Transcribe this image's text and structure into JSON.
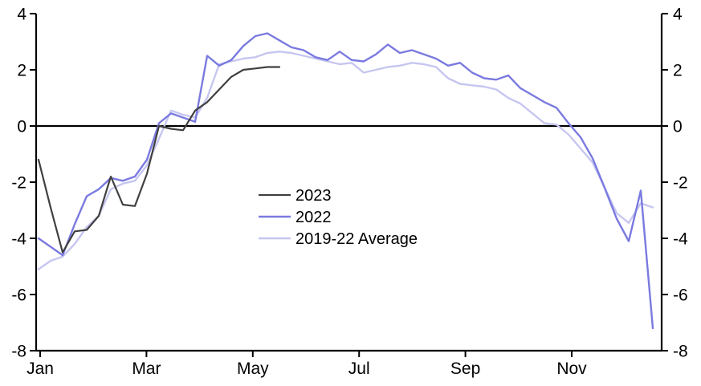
{
  "chart_data": {
    "type": "line",
    "title": "",
    "xlabel": "",
    "ylabel": "",
    "background": "#ffffff",
    "axis_color": "#000000",
    "zero_line": true,
    "y_axis": {
      "min": -8,
      "max": 4,
      "ticks": [
        4,
        2,
        0,
        -2,
        -4,
        -6,
        -8
      ],
      "mirrored_right": true,
      "grid": false
    },
    "x_axis": {
      "tick_labels": [
        "Jan",
        "Mar",
        "May",
        "Jul",
        "Sep",
        "Nov"
      ],
      "tick_months": [
        0,
        2,
        4,
        6,
        8,
        10
      ],
      "unit": "weekly points, Jan through late December"
    },
    "legend": {
      "location": "center",
      "entries": [
        "2023",
        "2022",
        "2019-22 Average"
      ]
    },
    "series": [
      {
        "name": "2019-22 Average",
        "color": "#c6c6f0",
        "line_width": 2.4,
        "values": [
          -5.1,
          -4.8,
          -4.65,
          -4.2,
          -3.6,
          -3.2,
          -2.25,
          -2.05,
          -1.95,
          -1.4,
          -0.45,
          0.55,
          0.4,
          0.3,
          1.0,
          2.2,
          2.3,
          2.4,
          2.45,
          2.6,
          2.65,
          2.6,
          2.5,
          2.4,
          2.3,
          2.2,
          2.25,
          1.9,
          2.0,
          2.1,
          2.15,
          2.25,
          2.2,
          2.1,
          1.7,
          1.5,
          1.45,
          1.4,
          1.3,
          1.0,
          0.8,
          0.45,
          0.1,
          0.05,
          -0.3,
          -0.8,
          -1.3,
          -2.2,
          -3.1,
          -3.45,
          -2.75,
          -2.9
        ]
      },
      {
        "name": "2022",
        "color": "#7a7ae0",
        "line_width": 2.4,
        "values": [
          -4.0,
          -4.3,
          -4.6,
          -3.5,
          -2.5,
          -2.25,
          -1.85,
          -1.95,
          -1.8,
          -1.2,
          0.1,
          0.45,
          0.3,
          0.15,
          2.5,
          2.15,
          2.35,
          2.85,
          3.2,
          3.3,
          3.05,
          2.8,
          2.7,
          2.45,
          2.35,
          2.65,
          2.35,
          2.3,
          2.55,
          2.9,
          2.6,
          2.7,
          2.55,
          2.4,
          2.15,
          2.25,
          1.9,
          1.7,
          1.65,
          1.8,
          1.35,
          1.1,
          0.85,
          0.65,
          0.1,
          -0.4,
          -1.15,
          -2.2,
          -3.3,
          -4.1,
          -2.3,
          -7.2
        ]
      },
      {
        "name": "2023",
        "color": "#404040",
        "line_width": 2.2,
        "values": [
          -1.2,
          -2.9,
          -4.5,
          -3.75,
          -3.7,
          -3.2,
          -1.8,
          -2.8,
          -2.85,
          -1.7,
          0.0,
          -0.1,
          -0.15,
          0.55,
          0.85,
          1.3,
          1.75,
          2.0,
          2.05,
          2.1,
          2.1
        ]
      }
    ],
    "legend_order": [
      "2023",
      "2022",
      "2019-22 Average"
    ]
  }
}
